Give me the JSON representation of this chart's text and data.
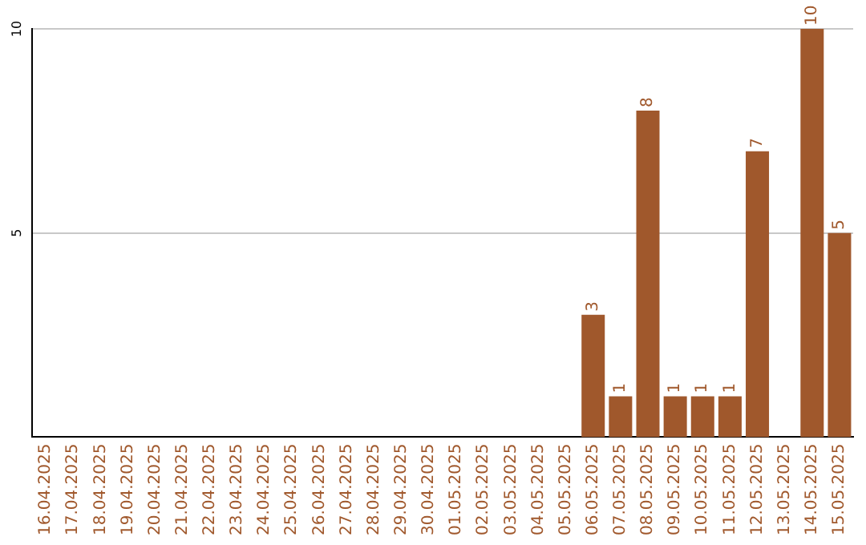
{
  "chart_data": {
    "type": "bar",
    "categories": [
      "16.04.2025",
      "17.04.2025",
      "18.04.2025",
      "19.04.2025",
      "20.04.2025",
      "21.04.2025",
      "22.04.2025",
      "23.04.2025",
      "24.04.2025",
      "25.04.2025",
      "26.04.2025",
      "27.04.2025",
      "28.04.2025",
      "29.04.2025",
      "30.04.2025",
      "01.05.2025",
      "02.05.2025",
      "03.05.2025",
      "04.05.2025",
      "05.05.2025",
      "06.05.2025",
      "07.05.2025",
      "08.05.2025",
      "09.05.2025",
      "10.05.2025",
      "11.05.2025",
      "12.05.2025",
      "13.05.2025",
      "14.05.2025",
      "15.05.2025"
    ],
    "values": [
      0,
      0,
      0,
      0,
      0,
      0,
      0,
      0,
      0,
      0,
      0,
      0,
      0,
      0,
      0,
      0,
      0,
      0,
      0,
      0,
      3,
      1,
      8,
      1,
      1,
      1,
      7,
      0,
      10,
      5
    ],
    "value_labels": [
      null,
      null,
      null,
      null,
      null,
      null,
      null,
      null,
      null,
      null,
      null,
      null,
      null,
      null,
      null,
      null,
      null,
      null,
      null,
      null,
      "3",
      "1",
      "8",
      "1",
      "1",
      "1",
      "7",
      null,
      "10",
      "5"
    ],
    "color": "#a0582c",
    "ylim": [
      0,
      10
    ],
    "yticks": [
      5,
      10
    ],
    "grid": "y",
    "legend": false
  }
}
